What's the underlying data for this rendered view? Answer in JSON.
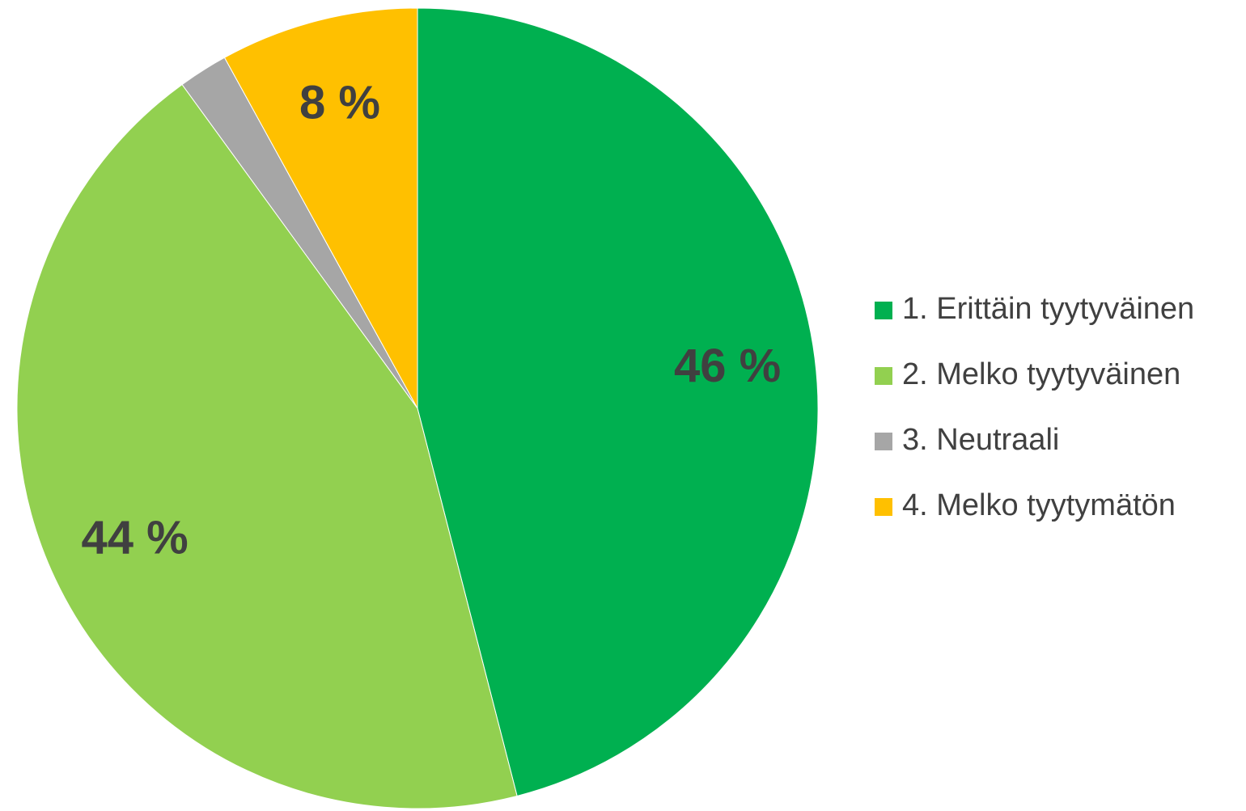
{
  "chart_data": {
    "type": "pie",
    "categories": [
      "1. Erittäin tyytyväinen",
      "2. Melko tyytyväinen",
      "3. Neutraali",
      "4. Melko tyytymätön"
    ],
    "values": [
      46,
      44,
      2,
      8
    ],
    "value_labels": [
      "46 %",
      "44 %",
      null,
      "8 %"
    ],
    "colors": [
      "#00b050",
      "#92d050",
      "#a6a6a6",
      "#ffc000"
    ],
    "legend": "right"
  }
}
